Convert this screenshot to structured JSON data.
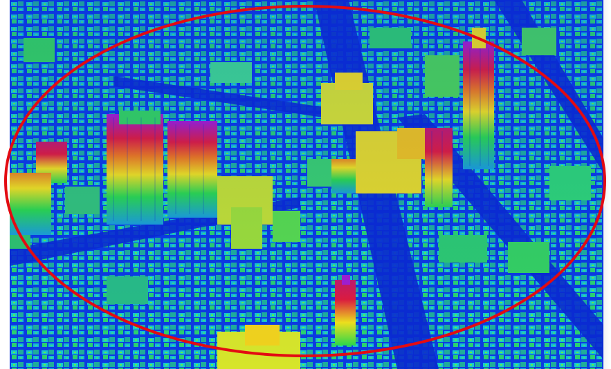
{
  "image": {
    "subject": "lidar-elevation-city-model",
    "colors": {
      "ground": "#0a2fd8",
      "low": "#13c6c9",
      "mid": "#28e04a",
      "high": "#f2e21a",
      "peak": "#e01b3a",
      "top": "#b01fd0",
      "highlight_ring": "#e30b12"
    }
  }
}
